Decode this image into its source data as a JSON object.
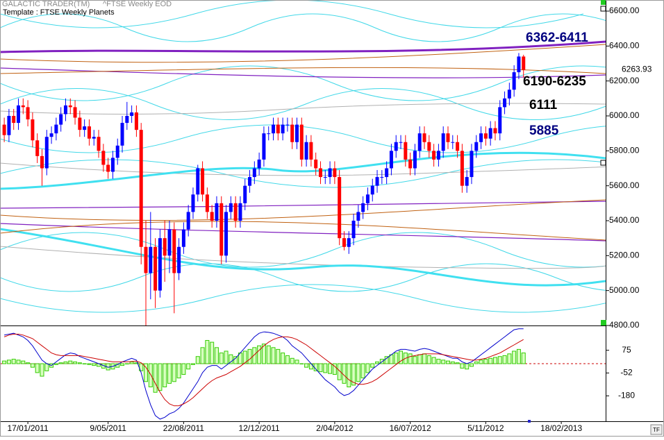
{
  "chart_data": [
    {
      "type": "candlestick",
      "app": "GALACTIC TRADER(TM)",
      "symbol": "^FTSE Weekly EOD",
      "title": "Template : FTSE Weekly Planets",
      "annotations": [
        "6362-6411",
        "6190-6235",
        "6111",
        "5885"
      ],
      "up_color": "#0000ff",
      "down_color": "#ff0000",
      "xlim": [
        -0.9,
        127.4
      ],
      "xticks": [
        {
          "value": 5,
          "label": "17/01/2011"
        },
        {
          "value": 22,
          "label": "9/05/2011"
        },
        {
          "value": 38,
          "label": "22/08/2011"
        },
        {
          "value": 54,
          "label": "12/12/2011"
        },
        {
          "value": 70,
          "label": "2/04/2012"
        },
        {
          "value": 86,
          "label": "16/07/2012"
        },
        {
          "value": 102,
          "label": "5/11/2012"
        },
        {
          "value": 118,
          "label": "18/02/2013"
        }
      ],
      "ylim": [
        4800,
        6600
      ],
      "yticks": [
        {
          "value": 4800,
          "label": "4800.00"
        },
        {
          "value": 5000,
          "label": "5000.00"
        },
        {
          "value": 5200,
          "label": "5200.00"
        },
        {
          "value": 5400,
          "label": "5400.00"
        },
        {
          "value": 5600,
          "label": "5600.00"
        },
        {
          "value": 5800,
          "label": "5800.00"
        },
        {
          "value": 6000,
          "label": "6000.00"
        },
        {
          "value": 6200,
          "label": "6200.00"
        },
        {
          "value": 6400,
          "label": "6400.00"
        },
        {
          "value": 6600,
          "label": "6600.00"
        }
      ],
      "open": [
        5950,
        5890,
        6000,
        5960,
        6060,
        6050,
        5980,
        5860,
        5770,
        5700,
        5880,
        5900,
        5950,
        6010,
        6060,
        6050,
        5990,
        5920,
        5940,
        5870,
        5880,
        5800,
        5720,
        5680,
        5760,
        5830,
        5960,
        6000,
        6020,
        5920,
        5250,
        5100,
        5250,
        5000,
        5300,
        5200,
        5350,
        5100,
        5250,
        5350,
        5450,
        5550,
        5700,
        5550,
        5450,
        5400,
        5500,
        5200,
        5450,
        5500,
        5400,
        5500,
        5600,
        5650,
        5700,
        5750,
        5900,
        5900,
        5950,
        5900,
        5950,
        5950,
        5850,
        5950,
        5750,
        5850,
        5750,
        5700,
        5650,
        5650,
        5700,
        5650,
        5300,
        5250,
        5300,
        5400,
        5450,
        5500,
        5550,
        5600,
        5650,
        5650,
        5700,
        5800,
        5850,
        5850,
        5750,
        5700,
        5800,
        5900,
        5850,
        5800,
        5750,
        5800,
        5900,
        5850,
        5850,
        5800,
        5600,
        5650,
        5800,
        5850,
        5900,
        5870,
        5930,
        5900,
        6050,
        6100,
        6150,
        6250,
        6340
      ],
      "high": [
        5990,
        6040,
        6040,
        6100,
        6100,
        6090,
        6020,
        5900,
        5810,
        5920,
        5940,
        5990,
        6050,
        6100,
        6100,
        6090,
        6030,
        5980,
        5980,
        5920,
        5920,
        5840,
        5760,
        5800,
        5870,
        6000,
        6080,
        6060,
        6060,
        5960,
        5400,
        5450,
        5300,
        5350,
        5400,
        5400,
        5390,
        5300,
        5390,
        5490,
        5590,
        5720,
        5740,
        5590,
        5490,
        5540,
        5540,
        5490,
        5540,
        5540,
        5540,
        5640,
        5690,
        5740,
        5790,
        5940,
        5940,
        5990,
        5990,
        5990,
        5990,
        5990,
        5990,
        5990,
        5890,
        5890,
        5790,
        5740,
        5690,
        5740,
        5740,
        5690,
        5340,
        5340,
        5440,
        5490,
        5540,
        5590,
        5640,
        5690,
        5690,
        5740,
        5840,
        5890,
        5890,
        5890,
        5790,
        5840,
        5940,
        5940,
        5890,
        5840,
        5840,
        5940,
        5940,
        5890,
        5890,
        5840,
        5690,
        5840,
        5890,
        5940,
        5940,
        5970,
        5970,
        6090,
        6140,
        6190,
        6290,
        6360,
        6350
      ],
      "low": [
        5850,
        5850,
        5920,
        5920,
        6010,
        5940,
        5820,
        5730,
        5600,
        5660,
        5840,
        5860,
        5910,
        5970,
        6010,
        5950,
        5880,
        5880,
        5830,
        5830,
        5760,
        5680,
        5640,
        5640,
        5720,
        5790,
        5920,
        5960,
        5880,
        5150,
        4790,
        4950,
        4900,
        4960,
        5050,
        5100,
        4870,
        5060,
        5210,
        5310,
        5410,
        5510,
        5510,
        5410,
        5360,
        5360,
        5150,
        5160,
        5410,
        5360,
        5360,
        5460,
        5560,
        5610,
        5660,
        5710,
        5860,
        5860,
        5860,
        5860,
        5910,
        5810,
        5810,
        5710,
        5710,
        5710,
        5660,
        5610,
        5610,
        5610,
        5610,
        5260,
        5230,
        5210,
        5260,
        5360,
        5410,
        5460,
        5510,
        5560,
        5610,
        5610,
        5660,
        5760,
        5810,
        5710,
        5660,
        5660,
        5760,
        5810,
        5760,
        5710,
        5710,
        5760,
        5810,
        5810,
        5760,
        5560,
        5560,
        5610,
        5760,
        5810,
        5830,
        5830,
        5860,
        5860,
        6010,
        6060,
        6110,
        6210,
        6220
      ],
      "close": [
        5890,
        6000,
        5960,
        6060,
        6050,
        5980,
        5860,
        5770,
        5700,
        5880,
        5900,
        5950,
        6010,
        6060,
        6050,
        5990,
        5920,
        5940,
        5870,
        5880,
        5800,
        5720,
        5680,
        5760,
        5830,
        5960,
        6000,
        6020,
        5920,
        5250,
        5100,
        5250,
        5000,
        5300,
        5200,
        5350,
        5100,
        5250,
        5350,
        5450,
        5550,
        5700,
        5550,
        5450,
        5400,
        5500,
        5200,
        5450,
        5500,
        5400,
        5500,
        5600,
        5650,
        5700,
        5750,
        5900,
        5900,
        5950,
        5900,
        5950,
        5950,
        5850,
        5950,
        5750,
        5850,
        5750,
        5700,
        5650,
        5650,
        5700,
        5650,
        5300,
        5250,
        5300,
        5400,
        5450,
        5500,
        5550,
        5600,
        5650,
        5650,
        5700,
        5800,
        5850,
        5850,
        5750,
        5700,
        5800,
        5900,
        5850,
        5800,
        5750,
        5800,
        5900,
        5850,
        5850,
        5800,
        5600,
        5650,
        5800,
        5850,
        5900,
        5870,
        5930,
        5900,
        6050,
        6100,
        6150,
        6250,
        6340,
        6263.93
      ]
    },
    {
      "type": "combo",
      "xlim": [
        -0.9,
        127.4
      ],
      "ylim": [
        -322,
        198
      ],
      "yticks": [
        75,
        -52,
        -180
      ],
      "zero_color": "#cc0000",
      "series": [
        {
          "type": "bar",
          "color": "#33cc00",
          "values": [
            15,
            20,
            25,
            20,
            15,
            5,
            -20,
            -50,
            -70,
            -40,
            -20,
            -5,
            5,
            10,
            15,
            10,
            5,
            0,
            -5,
            -10,
            -15,
            -25,
            -35,
            -30,
            -20,
            -10,
            0,
            10,
            5,
            -40,
            -100,
            -130,
            -160,
            -150,
            -130,
            -110,
            -100,
            -80,
            -60,
            -30,
            -5,
            40,
            90,
            130,
            120,
            90,
            60,
            70,
            50,
            40,
            60,
            70,
            80,
            90,
            100,
            110,
            100,
            90,
            80,
            60,
            45,
            30,
            20,
            0,
            -20,
            -30,
            -40,
            -45,
            -50,
            -55,
            -60,
            -90,
            -110,
            -130,
            -120,
            -100,
            -80,
            -50,
            -20,
            10,
            25,
            40,
            50,
            60,
            70,
            60,
            55,
            40,
            50,
            55,
            45,
            35,
            25,
            20,
            15,
            10,
            5,
            -25,
            -30,
            -15,
            10,
            20,
            25,
            30,
            35,
            40,
            45,
            55,
            70,
            80,
            60
          ]
        },
        {
          "type": "line",
          "color": "#0000cc",
          "values": [
            160,
            165,
            170,
            160,
            150,
            130,
            100,
            60,
            20,
            0,
            -10,
            10,
            30,
            50,
            60,
            55,
            40,
            30,
            20,
            10,
            0,
            -10,
            -20,
            -15,
            -5,
            10,
            20,
            30,
            20,
            -50,
            -150,
            -230,
            -290,
            -310,
            -300,
            -280,
            -270,
            -250,
            -220,
            -180,
            -140,
            -100,
            -50,
            -20,
            -10,
            -10,
            -30,
            -10,
            10,
            30,
            60,
            90,
            120,
            150,
            170,
            178,
            175,
            170,
            160,
            150,
            130,
            100,
            80,
            60,
            30,
            0,
            -30,
            -60,
            -90,
            -110,
            -130,
            -160,
            -178,
            -170,
            -150,
            -120,
            -90,
            -60,
            -30,
            -10,
            10,
            30,
            50,
            70,
            80,
            80,
            75,
            70,
            80,
            85,
            80,
            70,
            60,
            50,
            40,
            30,
            30,
            10,
            0,
            10,
            30,
            50,
            70,
            90,
            110,
            130,
            150,
            170,
            190,
            195,
            195
          ]
        },
        {
          "type": "line",
          "color": "#cc0000",
          "values": [
            150,
            160,
            165,
            165,
            160,
            150,
            140,
            120,
            100,
            80,
            60,
            50,
            45,
            45,
            45,
            45,
            45,
            40,
            35,
            30,
            25,
            20,
            15,
            10,
            10,
            10,
            10,
            12,
            14,
            5,
            -20,
            -60,
            -110,
            -160,
            -200,
            -225,
            -236,
            -235,
            -225,
            -210,
            -190,
            -165,
            -140,
            -115,
            -95,
            -80,
            -70,
            -60,
            -45,
            -30,
            -15,
            5,
            25,
            50,
            75,
            100,
            120,
            135,
            145,
            150,
            150,
            145,
            135,
            120,
            105,
            85,
            65,
            45,
            25,
            5,
            -15,
            -40,
            -65,
            -90,
            -105,
            -115,
            -115,
            -110,
            -100,
            -85,
            -65,
            -45,
            -25,
            -5,
            15,
            30,
            40,
            45,
            50,
            55,
            55,
            55,
            55,
            50,
            45,
            40,
            35,
            30,
            25,
            20,
            20,
            25,
            30,
            40,
            50,
            60,
            75,
            90,
            105,
            120,
            135
          ]
        }
      ]
    }
  ]
}
